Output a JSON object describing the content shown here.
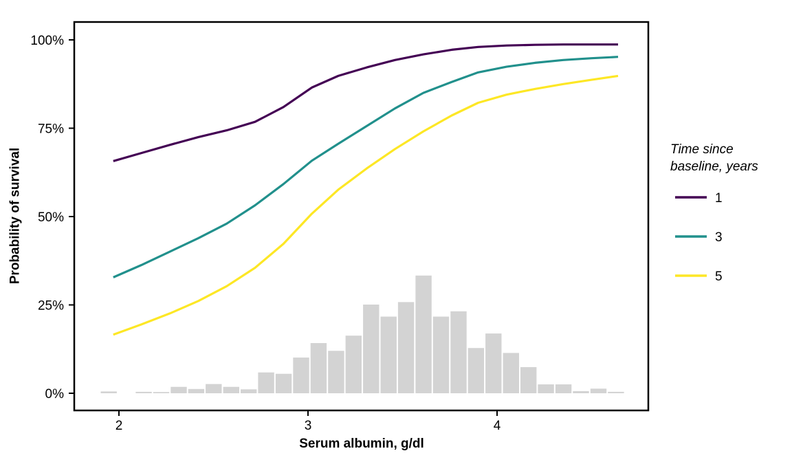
{
  "chart_data": {
    "type": "line",
    "title": "",
    "xlabel": "Serum albumin, g/dl",
    "ylabel": "Probability of survival",
    "x_axis": {
      "ticks": [
        2,
        3,
        4
      ],
      "range_shown": [
        1.76,
        4.8
      ]
    },
    "y_axis": {
      "tick_labels": [
        "0%",
        "25%",
        "50%",
        "75%",
        "100%"
      ],
      "tick_values": [
        0,
        25,
        50,
        75,
        100
      ],
      "unit": "percent"
    },
    "grid": "off",
    "legend": {
      "position": "right",
      "title": "Time since baseline, years",
      "title_lines": [
        "Time since",
        "baseline, years"
      ],
      "entries": [
        {
          "label": "1",
          "color": "#440154"
        },
        {
          "label": "3",
          "color": "#21908C"
        },
        {
          "label": "5",
          "color": "#FDE725"
        }
      ]
    },
    "x": [
      1.97,
      2.12,
      2.27,
      2.42,
      2.57,
      2.72,
      2.87,
      3.02,
      3.16,
      3.31,
      3.46,
      3.61,
      3.76,
      3.9,
      4.05,
      4.2,
      4.35,
      4.5,
      4.64
    ],
    "series": [
      {
        "name": "1",
        "color": "#440154",
        "values_pct": [
          65.7,
          68.0,
          70.3,
          72.5,
          74.4,
          76.8,
          81.0,
          86.5,
          89.8,
          92.2,
          94.3,
          95.9,
          97.2,
          98.0,
          98.4,
          98.6,
          98.7,
          98.7,
          98.7
        ]
      },
      {
        "name": "3",
        "color": "#21908C",
        "values_pct": [
          32.8,
          36.3,
          40.1,
          43.9,
          48.0,
          53.2,
          59.2,
          65.8,
          70.6,
          75.6,
          80.6,
          85.0,
          88.1,
          90.8,
          92.4,
          93.5,
          94.3,
          94.8,
          95.2
        ]
      },
      {
        "name": "5",
        "color": "#FDE725",
        "values_pct": [
          16.6,
          19.5,
          22.6,
          26.1,
          30.3,
          35.5,
          42.3,
          50.8,
          57.6,
          63.6,
          69.1,
          74.1,
          78.6,
          82.2,
          84.5,
          86.1,
          87.5,
          88.7,
          89.8
        ]
      }
    ],
    "histogram": {
      "description": "distribution of serum albumin",
      "color": "#D3D3D3",
      "bin_start": 1.9,
      "bin_width": 0.0925,
      "heights_pct": [
        0.5,
        0,
        0.4,
        0.35,
        1.8,
        1.2,
        2.6,
        1.8,
        1.1,
        5.9,
        5.5,
        10.1,
        14.2,
        12.0,
        16.3,
        25.1,
        21.7,
        25.8,
        33.3,
        21.7,
        23.2,
        12.8,
        16.9,
        11.4,
        7.4,
        2.5,
        2.5,
        0.6,
        1.3,
        0.4
      ]
    },
    "colors": {
      "panel_border": "#000000",
      "tick": "#000000",
      "text": "#000000",
      "background": "#FFFFFF"
    }
  }
}
